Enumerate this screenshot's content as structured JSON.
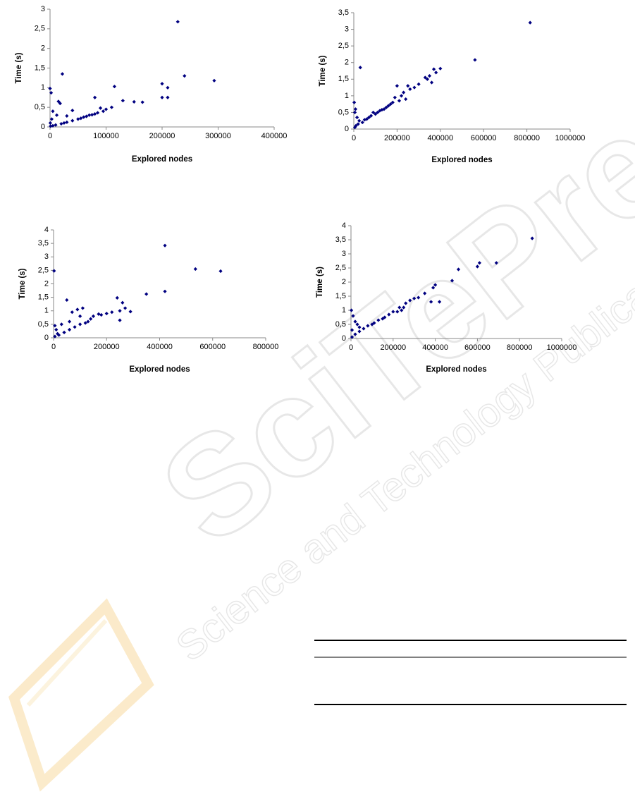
{
  "chart_data": [
    {
      "type": "scatter",
      "x_label": "Explored nodes",
      "y_label": "Time (s)",
      "color": "#000080",
      "xlim": [
        0,
        400000
      ],
      "xticks": [
        0,
        100000,
        200000,
        300000,
        400000
      ],
      "ylim": [
        0,
        3
      ],
      "yticks": [
        0,
        {
          "value": 0.5,
          "label": "0,5"
        },
        1,
        {
          "value": 1.5,
          "label": "1,5"
        },
        2,
        {
          "value": 2.5,
          "label": "2,5"
        },
        3
      ],
      "x": [
        228000,
        240000,
        293000,
        115000,
        200000,
        210000,
        200000,
        210000,
        80000,
        130000,
        150000,
        165000,
        22000,
        0,
        2000,
        5000,
        15000,
        18000,
        12000,
        30000,
        40000,
        100000,
        90000,
        95000,
        80000,
        70000,
        60000,
        50000,
        40000,
        30000,
        20000,
        10000,
        5000,
        1000,
        500,
        3000,
        110000,
        25000,
        55000,
        65000,
        75000,
        85000
      ],
      "values": [
        2.68,
        1.3,
        1.18,
        1.03,
        1.1,
        1.0,
        0.75,
        0.75,
        0.75,
        0.67,
        0.64,
        0.63,
        1.35,
        0.98,
        0.87,
        0.4,
        0.65,
        0.6,
        0.3,
        0.28,
        0.42,
        0.45,
        0.48,
        0.4,
        0.33,
        0.3,
        0.25,
        0.2,
        0.16,
        0.12,
        0.08,
        0.05,
        0.03,
        0.02,
        0.1,
        0.2,
        0.5,
        0.1,
        0.22,
        0.27,
        0.31,
        0.36
      ]
    },
    {
      "type": "scatter",
      "x_label": "Explored nodes",
      "y_label": "Time (s)",
      "color": "#000080",
      "xlim": [
        0,
        1000000
      ],
      "xticks": [
        0,
        200000,
        400000,
        600000,
        800000,
        1000000
      ],
      "ylim": [
        0,
        3.5
      ],
      "yticks": [
        0,
        {
          "value": 0.5,
          "label": "0,5"
        },
        1,
        {
          "value": 1.5,
          "label": "1,5"
        },
        2,
        {
          "value": 2.5,
          "label": "2,5"
        },
        3,
        {
          "value": 3.5,
          "label": "3,5"
        }
      ],
      "x": [
        815000,
        560000,
        400000,
        370000,
        380000,
        350000,
        330000,
        360000,
        340000,
        300000,
        280000,
        250000,
        260000,
        200000,
        220000,
        230000,
        240000,
        210000,
        190000,
        180000,
        170000,
        160000,
        150000,
        140000,
        120000,
        100000,
        80000,
        60000,
        40000,
        30000,
        20000,
        10000,
        5000,
        2000,
        5000,
        8000,
        15000,
        25000,
        50000,
        70000,
        90000,
        110000,
        130000
      ],
      "values": [
        3.2,
        2.08,
        1.82,
        1.8,
        1.7,
        1.6,
        1.55,
        1.4,
        1.5,
        1.35,
        1.25,
        1.3,
        1.2,
        1.3,
        1.0,
        1.1,
        0.9,
        0.85,
        0.95,
        0.8,
        0.75,
        0.7,
        0.65,
        0.6,
        0.55,
        0.45,
        0.4,
        0.3,
        0.2,
        1.85,
        0.15,
        0.1,
        0.05,
        0.8,
        0.5,
        0.6,
        0.35,
        0.25,
        0.28,
        0.35,
        0.5,
        0.5,
        0.58
      ]
    },
    {
      "type": "scatter",
      "x_label": "Explored nodes",
      "y_label": "Time (s)",
      "color": "#000080",
      "xlim": [
        0,
        800000
      ],
      "xticks": [
        0,
        200000,
        400000,
        600000,
        800000
      ],
      "ylim": [
        0,
        4
      ],
      "yticks": [
        0,
        {
          "value": 0.5,
          "label": "0,5"
        },
        1,
        {
          "value": 1.5,
          "label": "1,5"
        },
        2,
        {
          "value": 2.5,
          "label": "2,5"
        },
        3,
        {
          "value": 3.5,
          "label": "3,5"
        },
        4
      ],
      "x": [
        420000,
        535000,
        630000,
        420000,
        350000,
        240000,
        260000,
        270000,
        250000,
        220000,
        200000,
        180000,
        170000,
        150000,
        140000,
        130000,
        120000,
        100000,
        80000,
        60000,
        40000,
        20000,
        5000,
        2000,
        50000,
        70000,
        90000,
        110000,
        100000,
        30000,
        10000,
        5000,
        60000,
        250000,
        290000,
        15000
      ],
      "values": [
        3.42,
        2.55,
        2.47,
        1.72,
        1.62,
        1.48,
        1.3,
        1.1,
        1.0,
        0.95,
        0.9,
        0.85,
        0.88,
        0.8,
        0.7,
        0.6,
        0.55,
        0.5,
        0.4,
        0.3,
        0.2,
        0.1,
        0.05,
        2.48,
        1.4,
        0.95,
        1.05,
        1.1,
        0.8,
        0.5,
        0.3,
        0.45,
        0.6,
        0.65,
        0.97,
        0.15
      ]
    },
    {
      "type": "scatter",
      "x_label": "Explored nodes",
      "y_label": "Time (s)",
      "color": "#000080",
      "xlim": [
        0,
        1000000
      ],
      "xticks": [
        0,
        200000,
        400000,
        600000,
        800000,
        1000000
      ],
      "ylim": [
        0,
        4
      ],
      "yticks": [
        0,
        {
          "value": 0.5,
          "label": "0,5"
        },
        1,
        {
          "value": 1.5,
          "label": "1,5"
        },
        2,
        {
          "value": 2.5,
          "label": "2,5"
        },
        3,
        {
          "value": 3.5,
          "label": "3,5"
        },
        4
      ],
      "x": [
        860000,
        690000,
        610000,
        600000,
        510000,
        480000,
        400000,
        390000,
        350000,
        320000,
        300000,
        280000,
        260000,
        250000,
        240000,
        230000,
        220000,
        200000,
        180000,
        160000,
        150000,
        130000,
        110000,
        100000,
        80000,
        60000,
        40000,
        20000,
        5000,
        2000,
        10000,
        20000,
        30000,
        5000,
        40000,
        380000,
        420000
      ],
      "values": [
        3.55,
        2.68,
        2.68,
        2.55,
        2.45,
        2.05,
        1.9,
        1.8,
        1.6,
        1.45,
        1.42,
        1.35,
        1.25,
        1.1,
        1.0,
        1.1,
        0.95,
        0.95,
        0.85,
        0.75,
        0.7,
        0.65,
        0.55,
        0.5,
        0.45,
        0.35,
        0.25,
        0.15,
        0.05,
        1.0,
        0.8,
        0.6,
        0.5,
        0.3,
        0.4,
        1.3,
        1.3
      ]
    }
  ],
  "watermark": {
    "title": "SciTePress",
    "subtitle": "Science and Technology Publications"
  }
}
